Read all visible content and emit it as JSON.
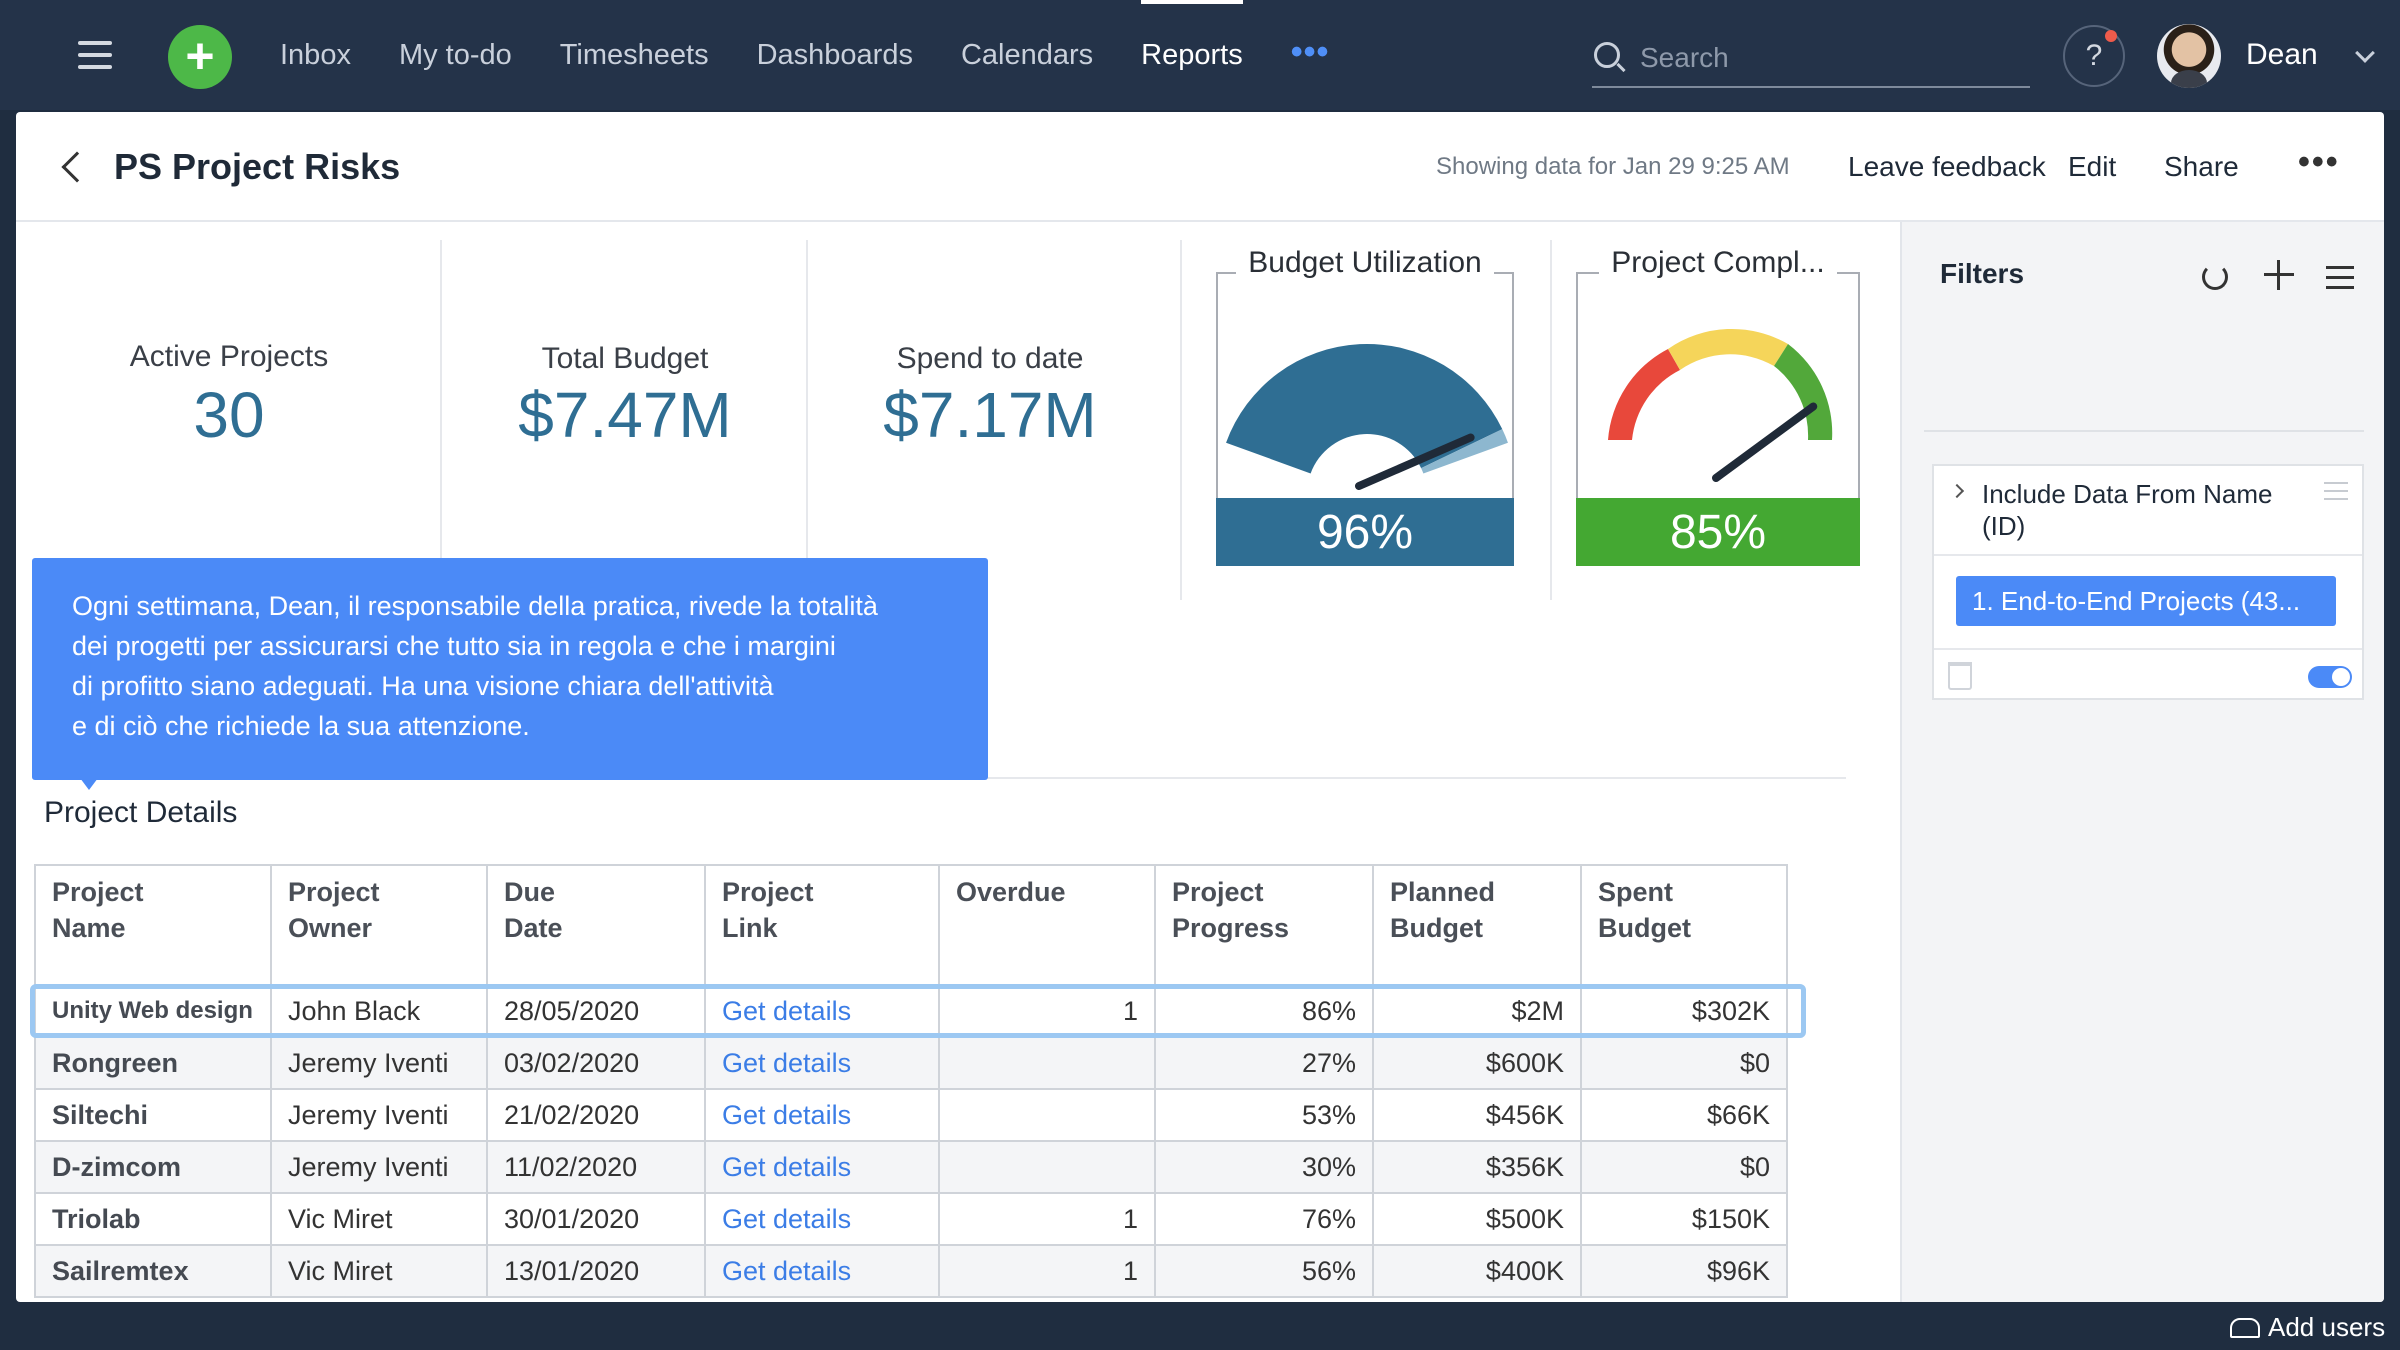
{
  "nav": {
    "items": [
      {
        "label": "Inbox",
        "active": false
      },
      {
        "label": "My to-do",
        "active": false
      },
      {
        "label": "Timesheets",
        "active": false
      },
      {
        "label": "Dashboards",
        "active": false
      },
      {
        "label": "Calendars",
        "active": false
      },
      {
        "label": "Reports",
        "active": true
      }
    ],
    "more": "•••",
    "search_placeholder": "Search",
    "help": "?",
    "user": "Dean"
  },
  "header": {
    "title": "PS Project Risks",
    "showing": "Showing data for Jan 29 9:25 AM",
    "leave_feedback": "Leave feedback",
    "edit": "Edit",
    "share": "Share",
    "more": "•••"
  },
  "kpis": {
    "active_projects": {
      "label": "Active Projects",
      "value": "30"
    },
    "total_budget": {
      "label": "Total Budget",
      "value": "$7.47M"
    },
    "spend_to_date": {
      "label": "Spend to date",
      "value": "$7.17M"
    }
  },
  "gauges": {
    "budget": {
      "title": "Budget Utilization",
      "value": "96%",
      "fraction": 0.96,
      "color": "#2f6e93"
    },
    "completion": {
      "title": "Project Compl...",
      "value": "85%",
      "fraction": 0.85,
      "color": "#44a832"
    }
  },
  "callout": {
    "line1": "Ogni settimana, Dean, il responsabile della pratica, rivede la totalità",
    "line2": "dei progetti per assicurarsi che tutto sia in regola e che i margini",
    "line3": "di profitto siano adeguati. Ha una visione chiara dell'attività",
    "line4": "e di ciò che richiede la sua attenzione."
  },
  "table": {
    "section_title": "Project Details",
    "headers": [
      [
        "Project",
        "Name"
      ],
      [
        "Project",
        "Owner"
      ],
      [
        "Due",
        "Date"
      ],
      [
        "Project",
        "Link"
      ],
      [
        "Overdue",
        ""
      ],
      [
        "Project",
        "Progress"
      ],
      [
        "Planned",
        "Budget"
      ],
      [
        "Spent",
        "Budget"
      ]
    ],
    "rows": [
      {
        "name": "Unity Web design",
        "owner": "John Black",
        "due": "28/05/2020",
        "link": "Get details",
        "overdue": "1",
        "progress": "86%",
        "planned": "$2M",
        "spent": "$302K"
      },
      {
        "name": "Rongreen",
        "owner": "Jeremy Iventi",
        "due": "03/02/2020",
        "link": "Get details",
        "overdue": "",
        "progress": "27%",
        "planned": "$600K",
        "spent": "$0"
      },
      {
        "name": "Siltechi",
        "owner": "Jeremy Iventi",
        "due": "21/02/2020",
        "link": "Get details",
        "overdue": "",
        "progress": "53%",
        "planned": "$456K",
        "spent": "$66K"
      },
      {
        "name": "D-zimcom",
        "owner": "Jeremy Iventi",
        "due": "11/02/2020",
        "link": "Get details",
        "overdue": "",
        "progress": "30%",
        "planned": "$356K",
        "spent": "$0"
      },
      {
        "name": "Triolab",
        "owner": "Vic Miret",
        "due": "30/01/2020",
        "link": "Get details",
        "overdue": "1",
        "progress": "76%",
        "planned": "$500K",
        "spent": "$150K"
      },
      {
        "name": "Sailremtex",
        "owner": "Vic Miret",
        "due": "13/01/2020",
        "link": "Get details",
        "overdue": "1",
        "progress": "56%",
        "planned": "$400K",
        "spent": "$96K"
      }
    ]
  },
  "filters": {
    "title": "Filters",
    "filter_label": "Include Data From Name (ID)",
    "chip": "1. End-to-End Projects (43...",
    "enabled": true
  },
  "footer": {
    "add_users": "Add users"
  }
}
